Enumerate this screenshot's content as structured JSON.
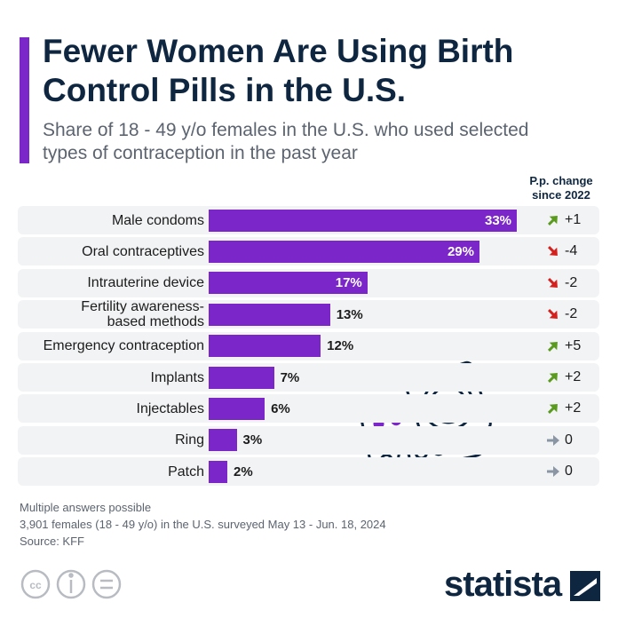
{
  "chart_data": {
    "type": "bar",
    "title": "Fewer Women Are Using Birth Control Pills in the U.S.",
    "subtitle": "Share of 18 - 49 y/o females in the U.S. who used selected types of contraception in the past year",
    "categories": [
      "Male condoms",
      "Oral contraceptives",
      "Intrauterine device",
      "Fertility awareness-\nbased methods",
      "Emergency contraception",
      "Implants",
      "Injectables",
      "Ring",
      "Patch"
    ],
    "values": [
      33,
      29,
      17,
      13,
      12,
      7,
      6,
      3,
      2
    ],
    "value_labels": [
      "33%",
      "29%",
      "17%",
      "13%",
      "12%",
      "7%",
      "6%",
      "3%",
      "2%"
    ],
    "color": "#7a26c9",
    "change_title": "P.p. change\nsince 2022",
    "changes": [
      1,
      -4,
      -2,
      -2,
      5,
      2,
      2,
      0,
      0
    ],
    "change_labels": [
      "+1",
      "-4",
      "-2",
      "-2",
      "+5",
      "+2",
      "+2",
      "0",
      "0"
    ],
    "notes": [
      "Multiple answers possible",
      "3,901 females (18 - 49 y/o) in the U.S. surveyed May 13 - Jun. 18, 2024",
      "Source: KFF"
    ],
    "brand": "statista"
  }
}
